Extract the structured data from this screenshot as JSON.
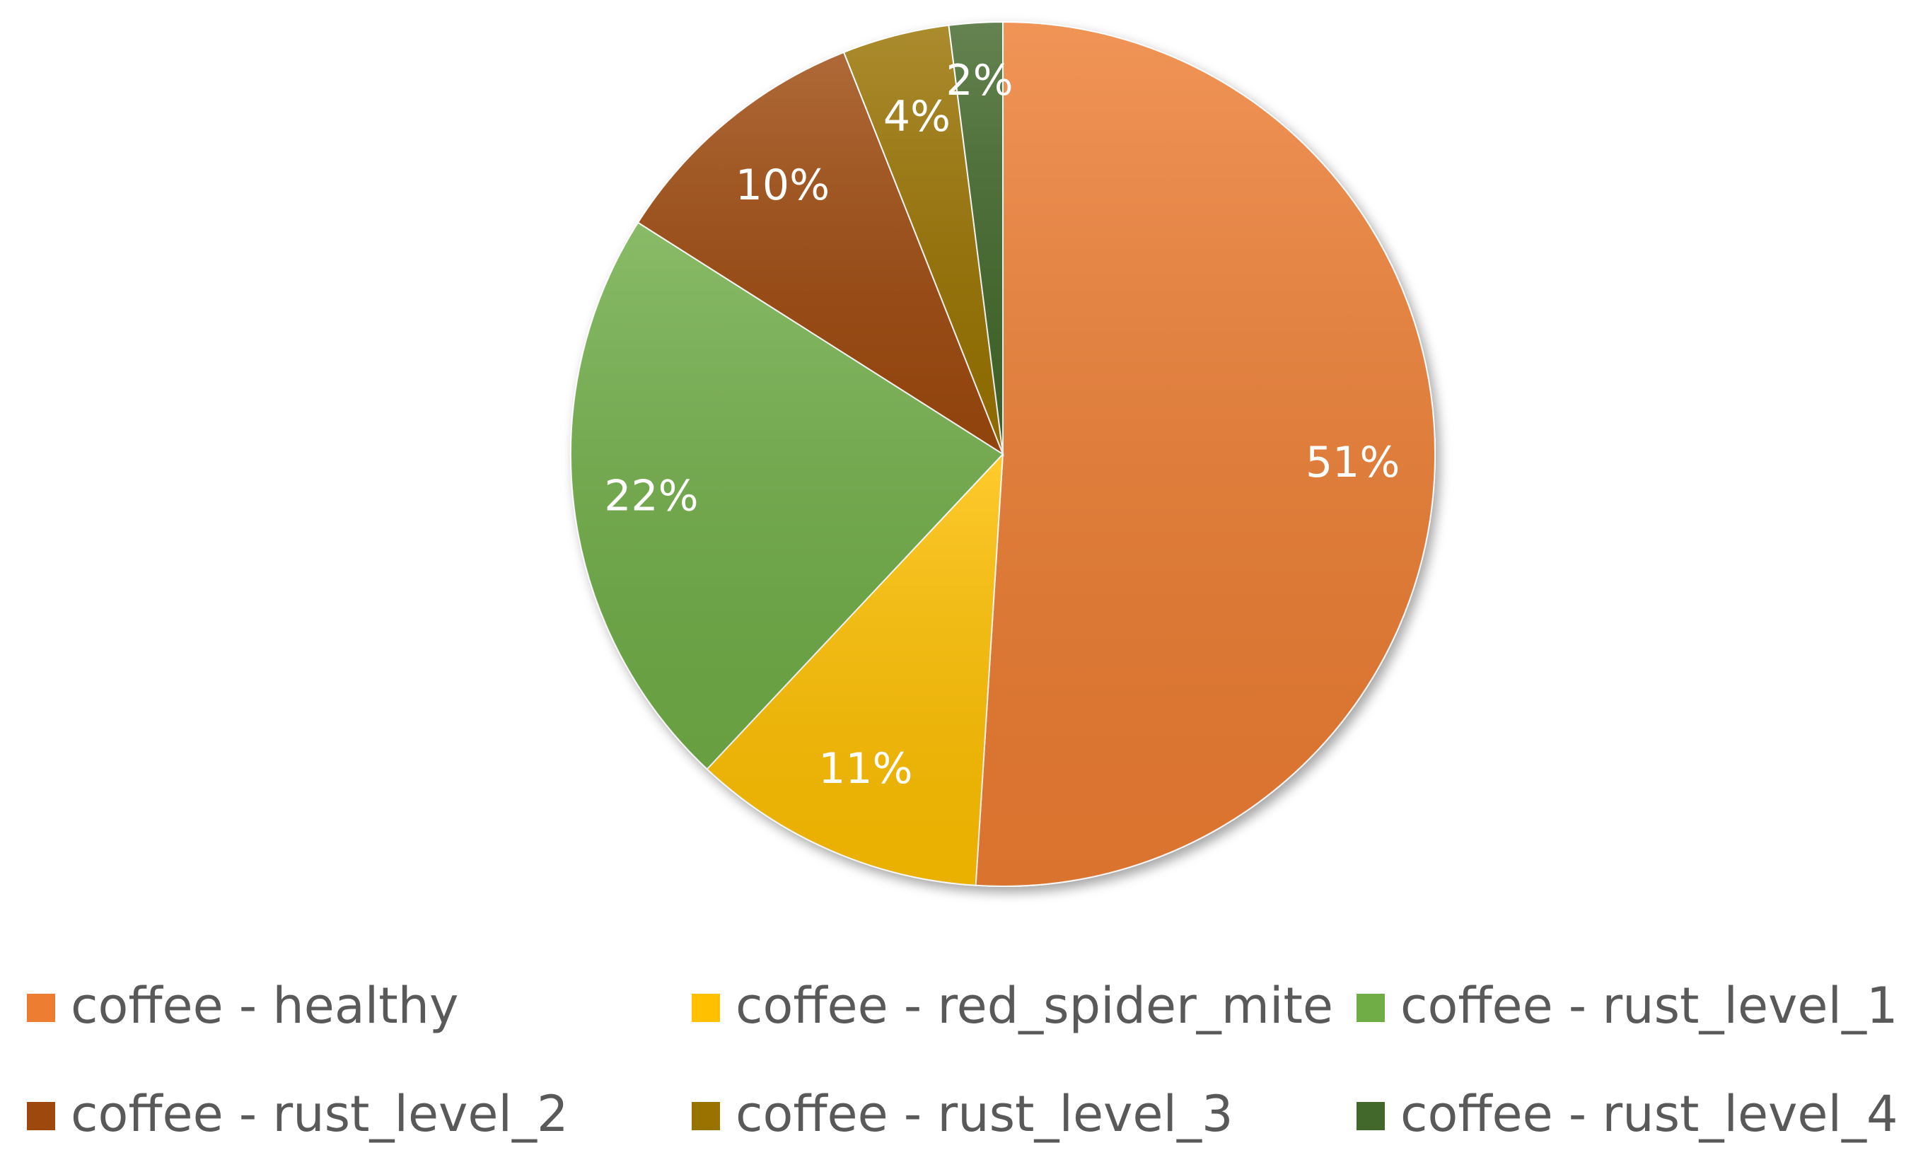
{
  "chart_data": {
    "type": "pie",
    "title": "",
    "start_angle_deg": 0,
    "direction": "clockwise",
    "legend_position": "bottom",
    "slices": [
      {
        "label": "coffee - healthy",
        "value": 51,
        "display": "51%",
        "color": "#ED7D31"
      },
      {
        "label": "coffee - red_spider_mite",
        "value": 11,
        "display": "11%",
        "color": "#FFC000"
      },
      {
        "label": "coffee - rust_level_1",
        "value": 22,
        "display": "22%",
        "color": "#70AD47"
      },
      {
        "label": "coffee - rust_level_2",
        "value": 10,
        "display": "10%",
        "color": "#9E480E"
      },
      {
        "label": "coffee - rust_level_3",
        "value": 4,
        "display": "4%",
        "color": "#997300"
      },
      {
        "label": "coffee - rust_level_4",
        "value": 2,
        "display": "2%",
        "color": "#43682B"
      }
    ]
  }
}
